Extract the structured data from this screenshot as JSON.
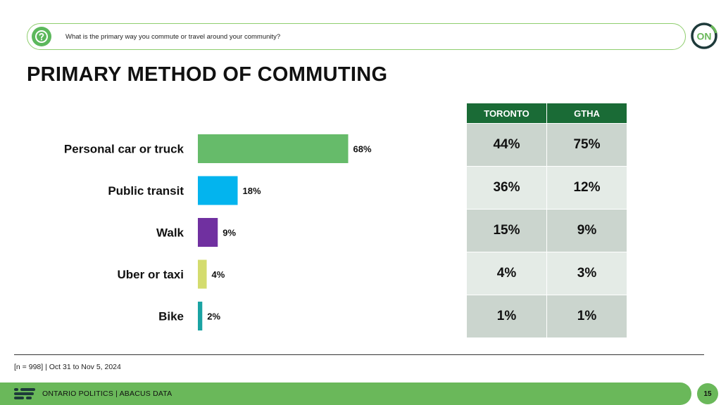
{
  "question": {
    "icon": "question-circle-icon",
    "text": "What is the primary way you commute or travel around your community?"
  },
  "logo": {
    "text": "ON",
    "icon": "ontario-on-logo"
  },
  "title": "PRIMARY METHOD OF COMMUTING",
  "chart_data": {
    "type": "bar",
    "orientation": "horizontal",
    "title": "PRIMARY METHOD OF COMMUTING",
    "categories": [
      "Personal car or truck",
      "Public transit",
      "Walk",
      "Uber or taxi",
      "Bike"
    ],
    "values": [
      68,
      18,
      9,
      4,
      2
    ],
    "value_labels": [
      "68%",
      "18%",
      "9%",
      "4%",
      "2%"
    ],
    "colors": [
      "#66bb6a",
      "#03b4ee",
      "#7030a0",
      "#d4dc6e",
      "#1aa3a3"
    ],
    "xlim": [
      0,
      100
    ],
    "xlabel": "",
    "ylabel": "",
    "grid": false,
    "legend": "none"
  },
  "region_table": {
    "headers": [
      "TORONTO",
      "GTHA"
    ],
    "rows": [
      [
        "44%",
        "75%"
      ],
      [
        "36%",
        "12%"
      ],
      [
        "15%",
        "9%"
      ],
      [
        "4%",
        "3%"
      ],
      [
        "1%",
        "1%"
      ]
    ]
  },
  "footnote": "[n = 998] | Oct 31 to Nov 5, 2024",
  "footer": {
    "text": "ONTARIO POLITICS  |  ABACUS DATA",
    "page": "15",
    "colors": {
      "band": "#6ab85a",
      "header": "#1a6b36"
    }
  }
}
